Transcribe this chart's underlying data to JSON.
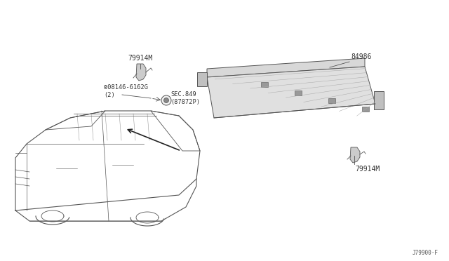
{
  "bg_color": "#ffffff",
  "text_color": "#333333",
  "line_color": "#555555",
  "part_84986": "84986",
  "part_79914M_top": "79914M",
  "part_79914M_bot": "79914M",
  "part_bolt": "®08146-6162G\n(2)",
  "part_sec": "SEC.849\n(87872P)",
  "footer": "J79900·F",
  "panel_face": "#e0e0e0",
  "clip_face": "#cccccc"
}
